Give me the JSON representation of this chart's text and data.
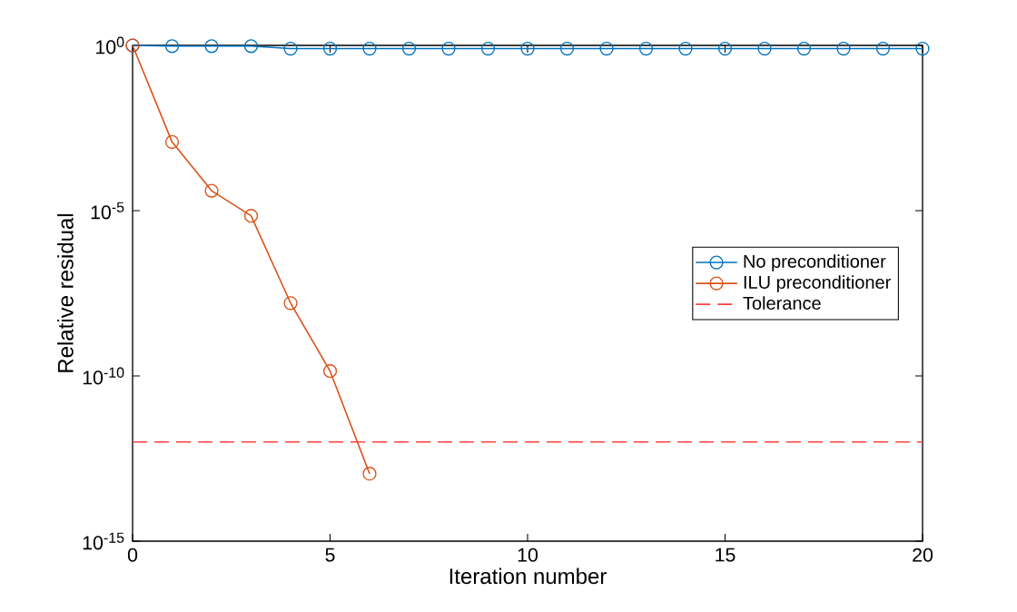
{
  "chart_data": {
    "type": "line",
    "xlabel": "Iteration number",
    "ylabel": "Relative residual",
    "log": "y",
    "marker": "circle",
    "legend": "right",
    "xlim": [
      0,
      20
    ],
    "xticks": [
      0,
      5,
      10,
      15,
      20
    ],
    "ylim": [
      1e-15,
      1
    ],
    "yticks": [
      {
        "value": 1e-15,
        "label": "10$^{-15}$"
      },
      {
        "value": 1e-10,
        "label": "10$^{-10}$"
      },
      {
        "value": 1e-05,
        "label": "10$^{-5}$"
      },
      {
        "value": 1,
        "label": "10$^{0}$"
      }
    ],
    "series": [
      {
        "name": "No preconditioner",
        "color": "#0072bd",
        "x": [
          0,
          1,
          2,
          3,
          4,
          5,
          6,
          7,
          8,
          9,
          10,
          11,
          12,
          13,
          14,
          15,
          16,
          17,
          18,
          19,
          20
        ],
        "values": [
          1,
          0.95,
          0.95,
          0.95,
          0.8,
          0.8,
          0.8,
          0.8,
          0.8,
          0.8,
          0.8,
          0.8,
          0.8,
          0.8,
          0.8,
          0.8,
          0.8,
          0.8,
          0.8,
          0.8,
          0.8
        ]
      },
      {
        "name": "ILU preconditioner",
        "color": "#d95319",
        "x": [
          0,
          1,
          2,
          3,
          4,
          5,
          6
        ],
        "values": [
          1,
          0.0012,
          4e-05,
          7e-06,
          1.6e-08,
          1.4e-10,
          1.1e-13
        ]
      }
    ],
    "ref_lines": [
      {
        "axis": "y",
        "value": 1e-12,
        "label": "Tolerance",
        "color": "#ff4040",
        "line_style": "dashed"
      }
    ]
  }
}
